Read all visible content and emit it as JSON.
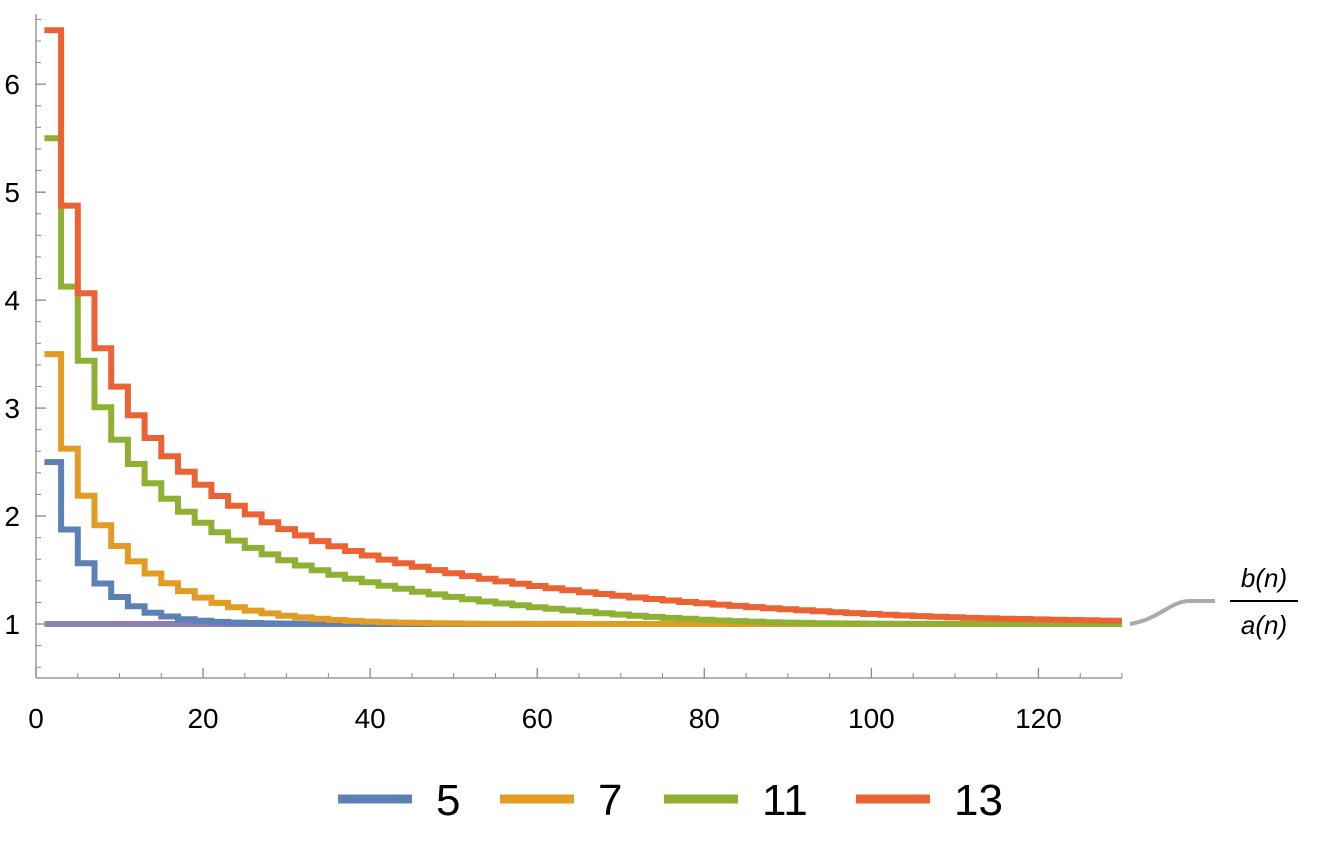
{
  "chart_data": {
    "type": "line",
    "step": true,
    "title": "",
    "xlabel": "",
    "ylabel": "",
    "xlim": [
      0,
      130
    ],
    "ylim": [
      0.5,
      6.65
    ],
    "xticks": [
      0,
      20,
      40,
      60,
      80,
      100,
      120
    ],
    "yticks": [
      1,
      2,
      3,
      4,
      5,
      6
    ],
    "grid": false,
    "legend_position": "bottom",
    "x": [
      1,
      2,
      3,
      4,
      5,
      6,
      7,
      8,
      9,
      10,
      11,
      12,
      13,
      14,
      15,
      16,
      17,
      18,
      19,
      20,
      21,
      22,
      23,
      24,
      25,
      26,
      27,
      28,
      29,
      30,
      31,
      32,
      33,
      34,
      35,
      36,
      37,
      38,
      39,
      40,
      41,
      42,
      43,
      44,
      45,
      46,
      47,
      48,
      49,
      50,
      51,
      52,
      53,
      54,
      55,
      56,
      57,
      58,
      59,
      60,
      61,
      62,
      63,
      64,
      65,
      66,
      67,
      68,
      69,
      70,
      71,
      72,
      73,
      74,
      75,
      76,
      77,
      78,
      79,
      80,
      81,
      82,
      83,
      84,
      85,
      86,
      87,
      88,
      89,
      90,
      91,
      92,
      93,
      94,
      95,
      96,
      97,
      98,
      99,
      100,
      101,
      102,
      103,
      104,
      105,
      106,
      107,
      108,
      109,
      110,
      111,
      112,
      113,
      114,
      115,
      116,
      117,
      118,
      119,
      120,
      121,
      122,
      123,
      124,
      125,
      126,
      127,
      128,
      129,
      130
    ],
    "series": [
      {
        "name": "5",
        "color": "#5E81B5",
        "values": [
          2.5,
          2.5,
          1.875,
          1.875,
          1.5625,
          1.5625,
          1.375,
          1.375,
          1.25,
          1.25,
          1.164,
          1.164,
          1.105,
          1.105,
          1.07,
          1.07,
          1.045,
          1.045,
          1.03,
          1.03,
          1.02,
          1.02,
          1.013,
          1.013,
          1.009,
          1.009,
          1.006,
          1.006,
          1.004,
          1.004,
          1.003,
          1.003,
          1.002,
          1.002,
          1.001,
          1.001,
          1.001,
          1.001,
          1.0,
          1.0,
          1.0,
          1.0,
          1.0,
          1.0,
          1.0,
          1.0,
          1.0,
          1.0,
          1.0,
          1.0,
          1.0,
          1.0,
          1.0,
          1.0,
          1.0,
          1.0,
          1.0,
          1.0,
          1.0,
          1.0,
          1.0,
          1.0,
          1.0,
          1.0,
          1.0,
          1.0,
          1.0,
          1.0,
          1.0,
          1.0,
          1.0,
          1.0,
          1.0,
          1.0,
          1.0,
          1.0,
          1.0,
          1.0,
          1.0,
          1.0,
          1.0,
          1.0,
          1.0,
          1.0,
          1.0,
          1.0,
          1.0,
          1.0,
          1.0,
          1.0,
          1.0,
          1.0,
          1.0,
          1.0,
          1.0,
          1.0,
          1.0,
          1.0,
          1.0,
          1.0,
          1.0,
          1.0,
          1.0,
          1.0,
          1.0,
          1.0,
          1.0,
          1.0,
          1.0,
          1.0,
          1.0,
          1.0,
          1.0,
          1.0,
          1.0,
          1.0,
          1.0,
          1.0,
          1.0,
          1.0,
          1.0,
          1.0,
          1.0,
          1.0,
          1.0,
          1.0,
          1.0,
          1.0,
          1.0,
          1.0
        ]
      },
      {
        "name": "7",
        "color": "#E19C24",
        "values": [
          3.5,
          3.5,
          2.625,
          2.625,
          2.188,
          2.188,
          1.914,
          1.914,
          1.723,
          1.723,
          1.58,
          1.58,
          1.468,
          1.468,
          1.378,
          1.378,
          1.305,
          1.305,
          1.245,
          1.245,
          1.196,
          1.196,
          1.156,
          1.156,
          1.124,
          1.124,
          1.098,
          1.098,
          1.077,
          1.077,
          1.061,
          1.061,
          1.048,
          1.048,
          1.037,
          1.037,
          1.029,
          1.029,
          1.022,
          1.022,
          1.017,
          1.017,
          1.013,
          1.013,
          1.01,
          1.01,
          1.008,
          1.008,
          1.006,
          1.006,
          1.004,
          1.004,
          1.003,
          1.003,
          1.002,
          1.002,
          1.002,
          1.002,
          1.001,
          1.001,
          1.001,
          1.001,
          1.001,
          1.001,
          1.0,
          1.0,
          1.0,
          1.0,
          1.0,
          1.0,
          1.0,
          1.0,
          1.0,
          1.0,
          1.0,
          1.0,
          1.0,
          1.0,
          1.0,
          1.0,
          1.0,
          1.0,
          1.0,
          1.0,
          1.0,
          1.0,
          1.0,
          1.0,
          1.0,
          1.0,
          1.0,
          1.0,
          1.0,
          1.0,
          1.0,
          1.0,
          1.0,
          1.0,
          1.0,
          1.0,
          1.0,
          1.0,
          1.0,
          1.0,
          1.0,
          1.0,
          1.0,
          1.0,
          1.0,
          1.0,
          1.0,
          1.0,
          1.0,
          1.0,
          1.0,
          1.0,
          1.0,
          1.0,
          1.0,
          1.0,
          1.0,
          1.0,
          1.0,
          1.0,
          1.0,
          1.0,
          1.0,
          1.0,
          1.0,
          1.0
        ]
      },
      {
        "name": "11",
        "color": "#8FB032",
        "values": [
          5.5,
          5.5,
          4.125,
          4.125,
          3.438,
          3.438,
          3.008,
          3.008,
          2.707,
          2.707,
          2.482,
          2.482,
          2.304,
          2.304,
          2.16,
          2.16,
          2.04,
          2.04,
          1.938,
          1.938,
          1.85,
          1.85,
          1.773,
          1.773,
          1.705,
          1.705,
          1.645,
          1.645,
          1.591,
          1.591,
          1.542,
          1.542,
          1.498,
          1.498,
          1.457,
          1.457,
          1.42,
          1.42,
          1.386,
          1.386,
          1.355,
          1.355,
          1.326,
          1.326,
          1.299,
          1.299,
          1.274,
          1.274,
          1.251,
          1.251,
          1.229,
          1.229,
          1.209,
          1.209,
          1.19,
          1.19,
          1.173,
          1.173,
          1.156,
          1.156,
          1.141,
          1.141,
          1.126,
          1.126,
          1.113,
          1.113,
          1.1,
          1.1,
          1.088,
          1.088,
          1.077,
          1.077,
          1.066,
          1.066,
          1.057,
          1.057,
          1.048,
          1.048,
          1.04,
          1.04,
          1.033,
          1.033,
          1.027,
          1.027,
          1.022,
          1.022,
          1.017,
          1.017,
          1.013,
          1.013,
          1.01,
          1.01,
          1.008,
          1.008,
          1.006,
          1.006,
          1.005,
          1.005,
          1.004,
          1.004,
          1.003,
          1.003,
          1.002,
          1.002,
          1.002,
          1.002,
          1.001,
          1.001,
          1.001,
          1.001,
          1.001,
          1.001,
          1.001,
          1.001,
          1.0,
          1.0,
          1.0,
          1.0,
          1.0,
          1.0,
          1.0,
          1.0,
          1.0,
          1.0,
          1.0,
          1.0,
          1.0,
          1.0,
          1.0,
          1.0
        ]
      },
      {
        "name": "13",
        "color": "#EB6235",
        "values": [
          6.5,
          6.5,
          4.875,
          4.875,
          4.063,
          4.063,
          3.555,
          3.555,
          3.199,
          3.199,
          2.933,
          2.933,
          2.723,
          2.723,
          2.553,
          2.553,
          2.411,
          2.411,
          2.29,
          2.29,
          2.186,
          2.186,
          2.095,
          2.095,
          2.015,
          2.015,
          1.943,
          1.943,
          1.879,
          1.879,
          1.821,
          1.821,
          1.768,
          1.768,
          1.72,
          1.72,
          1.676,
          1.676,
          1.635,
          1.635,
          1.597,
          1.597,
          1.562,
          1.562,
          1.53,
          1.53,
          1.499,
          1.499,
          1.471,
          1.471,
          1.444,
          1.444,
          1.419,
          1.419,
          1.395,
          1.395,
          1.373,
          1.373,
          1.352,
          1.352,
          1.332,
          1.332,
          1.313,
          1.313,
          1.295,
          1.295,
          1.278,
          1.278,
          1.262,
          1.262,
          1.246,
          1.246,
          1.232,
          1.232,
          1.218,
          1.218,
          1.204,
          1.204,
          1.192,
          1.192,
          1.18,
          1.18,
          1.168,
          1.168,
          1.157,
          1.157,
          1.146,
          1.146,
          1.136,
          1.136,
          1.127,
          1.127,
          1.118,
          1.118,
          1.109,
          1.109,
          1.101,
          1.101,
          1.093,
          1.093,
          1.086,
          1.086,
          1.079,
          1.079,
          1.073,
          1.073,
          1.067,
          1.067,
          1.062,
          1.062,
          1.057,
          1.057,
          1.053,
          1.053,
          1.049,
          1.049,
          1.046,
          1.046,
          1.043,
          1.043,
          1.04,
          1.04,
          1.037,
          1.037,
          1.034,
          1.034,
          1.032,
          1.032,
          1.03,
          1.03
        ]
      },
      {
        "name": "",
        "color": "#8F7DB8",
        "values": [
          1,
          1,
          1,
          1,
          1,
          1,
          1,
          1,
          1,
          1,
          1,
          1,
          1,
          1,
          1,
          1,
          1,
          1,
          1,
          1,
          1,
          1,
          1,
          1,
          1,
          1,
          1,
          1,
          1,
          1,
          1,
          1,
          1,
          1,
          1,
          1,
          1,
          1,
          1,
          1,
          1,
          1,
          1,
          1,
          1,
          1,
          1,
          1,
          1,
          1,
          1,
          1,
          1,
          1,
          1,
          1,
          1,
          1,
          1,
          1,
          1,
          1,
          1,
          1,
          1,
          1,
          1,
          1,
          1,
          1,
          1,
          1,
          1,
          1,
          1,
          1,
          1,
          1,
          1,
          1,
          1,
          1,
          1,
          1,
          1,
          1,
          1,
          1,
          1,
          1,
          1,
          1,
          1,
          1,
          1,
          1,
          1,
          1,
          1,
          1,
          1,
          1,
          1,
          1,
          1,
          1,
          1,
          1,
          1,
          1,
          1,
          1,
          1,
          1,
          1,
          1,
          1,
          1,
          1,
          1,
          1,
          1,
          1,
          1,
          1,
          1,
          1,
          1,
          1,
          1
        ]
      }
    ],
    "annotation": {
      "numerator": "b(n)",
      "denominator": "a(n)",
      "target_value": 1.0,
      "color": "#AAAAAA"
    },
    "legend_entries": [
      "5",
      "7",
      "11",
      "13"
    ]
  }
}
